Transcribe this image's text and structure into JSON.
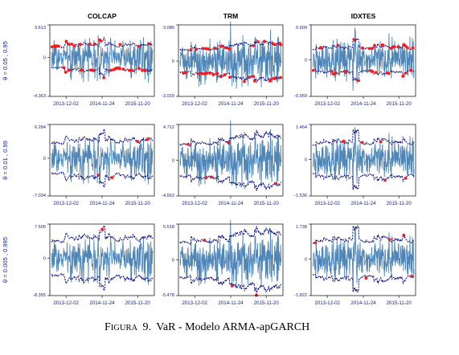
{
  "caption": {
    "prefix": "F",
    "prefix_rest": "IGURA",
    "number": "9.",
    "text": "VaR - Modelo ARMA-apGARCH"
  },
  "colors": {
    "returns": "#4f86b8",
    "var_bands": "#000080",
    "exceedances": "#ff1a1a",
    "axis_text": "#1a237e"
  },
  "chart_data": {
    "type": "line",
    "layout": "grid 3x3",
    "column_titles": [
      "COLCAP",
      "TRM",
      "IDXTES"
    ],
    "row_labels": [
      "θ = 0.05 , 0.95",
      "θ = 0.01 , 0.99",
      "θ = 0.005 , 0.995"
    ],
    "x_ticks": [
      "2013-12-02",
      "2014-11-24",
      "2015-11-20"
    ],
    "series": [
      "returns",
      "VaR lower",
      "VaR upper",
      "exceedances"
    ],
    "panels": [
      {
        "row": 0,
        "col": 0,
        "ylim": [
          -4.363,
          3.613
        ],
        "yticks": [
          "3.613",
          "0",
          "-4.363"
        ],
        "exceedances": 38
      },
      {
        "row": 0,
        "col": 1,
        "ylim": [
          -3.015,
          3.086
        ],
        "yticks": [
          "3.086",
          "0",
          "-3.015"
        ],
        "exceedances": 40
      },
      {
        "row": 0,
        "col": 2,
        "ylim": [
          -0.959,
          0.909
        ],
        "yticks": [
          "0.909",
          "0",
          "-0.959"
        ],
        "exceedances": 36
      },
      {
        "row": 1,
        "col": 0,
        "ylim": [
          -7.034,
          6.284
        ],
        "yticks": [
          "6.284",
          "0",
          "-7.034"
        ],
        "exceedances": 4
      },
      {
        "row": 1,
        "col": 1,
        "ylim": [
          -4.662,
          4.712
        ],
        "yticks": [
          "4.712",
          "0",
          "-4.662"
        ],
        "exceedances": 5
      },
      {
        "row": 1,
        "col": 2,
        "ylim": [
          -1.536,
          1.464
        ],
        "yticks": [
          "1.464",
          "0",
          "-1.536"
        ],
        "exceedances": 5
      },
      {
        "row": 2,
        "col": 0,
        "ylim": [
          -8.355,
          7.605
        ],
        "yticks": [
          "7.605",
          "0",
          "-8.355"
        ],
        "exceedances": 1
      },
      {
        "row": 2,
        "col": 1,
        "ylim": [
          -5.478,
          5.518
        ],
        "yticks": [
          "5.518",
          "0",
          "-5.478"
        ],
        "exceedances": 3
      },
      {
        "row": 2,
        "col": 2,
        "ylim": [
          -1.822,
          1.738
        ],
        "yticks": [
          "1.738",
          "0",
          "-1.822"
        ],
        "exceedances": 5
      }
    ]
  }
}
